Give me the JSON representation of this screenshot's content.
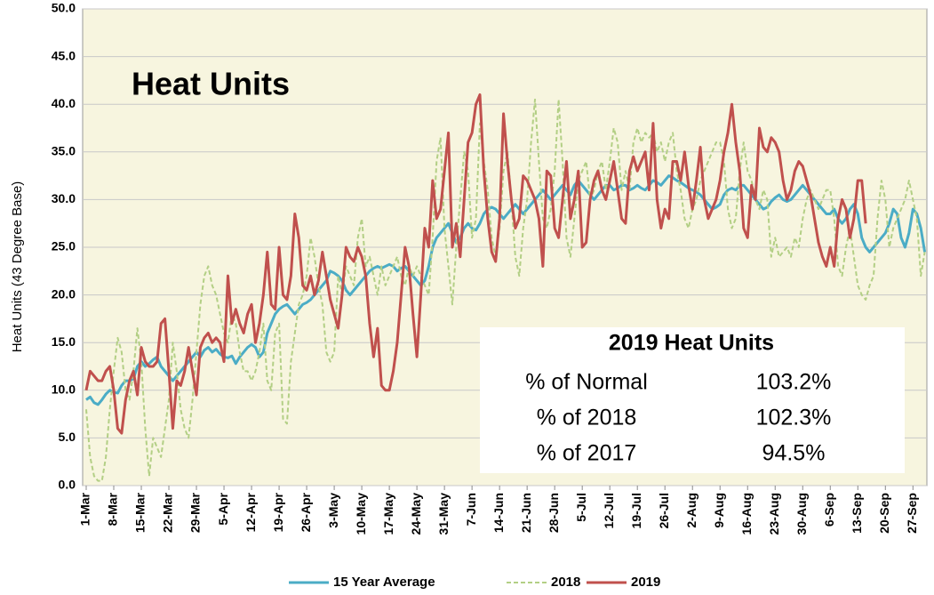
{
  "chart_data": {
    "type": "line",
    "title": "Heat Units",
    "ylabel": "Heat Units (43 Degree Base)",
    "ylim": [
      0,
      50
    ],
    "yticks": [
      {
        "value": 0,
        "label": "0.0"
      },
      {
        "value": 5,
        "label": "5.0"
      },
      {
        "value": 10,
        "label": "10.0"
      },
      {
        "value": 15,
        "label": "15.0"
      },
      {
        "value": 20,
        "label": "20.0"
      },
      {
        "value": 25,
        "label": "25.0"
      },
      {
        "value": 30,
        "label": "30.0"
      },
      {
        "value": 35,
        "label": "35.0"
      },
      {
        "value": 40,
        "label": "40.0"
      },
      {
        "value": 45,
        "label": "45.0"
      },
      {
        "value": 50,
        "label": "50.0"
      }
    ],
    "grid": true,
    "legend": "bottom",
    "categories": [
      "1-Mar",
      null,
      null,
      null,
      null,
      null,
      null,
      "8-Mar",
      null,
      null,
      null,
      null,
      null,
      null,
      "15-Mar",
      null,
      null,
      null,
      null,
      null,
      null,
      "22-Mar",
      null,
      null,
      null,
      null,
      null,
      null,
      "29-Mar",
      null,
      null,
      null,
      null,
      null,
      null,
      "5-Apr",
      null,
      null,
      null,
      null,
      null,
      null,
      "12-Apr",
      null,
      null,
      null,
      null,
      null,
      null,
      "19-Apr",
      null,
      null,
      null,
      null,
      null,
      null,
      "26-Apr",
      null,
      null,
      null,
      null,
      null,
      null,
      "3-May",
      null,
      null,
      null,
      null,
      null,
      null,
      "10-May",
      null,
      null,
      null,
      null,
      null,
      null,
      "17-May",
      null,
      null,
      null,
      null,
      null,
      null,
      "24-May",
      null,
      null,
      null,
      null,
      null,
      null,
      "31-May",
      null,
      null,
      null,
      null,
      null,
      null,
      "7-Jun",
      null,
      null,
      null,
      null,
      null,
      null,
      "14-Jun",
      null,
      null,
      null,
      null,
      null,
      null,
      "21-Jun",
      null,
      null,
      null,
      null,
      null,
      null,
      "28-Jun",
      null,
      null,
      null,
      null,
      null,
      null,
      "5-Jul",
      null,
      null,
      null,
      null,
      null,
      null,
      "12-Jul",
      null,
      null,
      null,
      null,
      null,
      null,
      "19-Jul",
      null,
      null,
      null,
      null,
      null,
      null,
      "26-Jul",
      null,
      null,
      null,
      null,
      null,
      null,
      "2-Aug",
      null,
      null,
      null,
      null,
      null,
      null,
      "9-Aug",
      null,
      null,
      null,
      null,
      null,
      null,
      "16-Aug",
      null,
      null,
      null,
      null,
      null,
      null,
      "23-Aug",
      null,
      null,
      null,
      null,
      null,
      null,
      "30-Aug",
      null,
      null,
      null,
      null,
      null,
      null,
      "6-Sep",
      null,
      null,
      null,
      null,
      null,
      null,
      "13-Sep",
      null,
      null,
      null,
      null,
      null,
      null,
      "20-Sep",
      null,
      null,
      null,
      null,
      null,
      null,
      "27-Sep",
      null,
      null,
      null
    ],
    "series": [
      {
        "name": "15 Year Average",
        "color": "#4bacc6",
        "dashed": false,
        "values": [
          9,
          9.3,
          8.7,
          8.5,
          9,
          9.6,
          10,
          9.8,
          9.7,
          10.5,
          11,
          11,
          11.2,
          12.5,
          13,
          12.5,
          12.8,
          13.2,
          13.5,
          12.5,
          12,
          11.5,
          11,
          11.5,
          12,
          12.5,
          13,
          13.5,
          14,
          13.5,
          14.2,
          14.5,
          14,
          14.3,
          13.8,
          13.5,
          13.4,
          13.6,
          12.8,
          13.5,
          14,
          14.5,
          14.8,
          14.5,
          13.5,
          14,
          16,
          17,
          18,
          18.5,
          18.8,
          19,
          18.5,
          18,
          18.5,
          19,
          19.2,
          19.5,
          20,
          20.5,
          21,
          21.5,
          22.5,
          22.3,
          22,
          21.5,
          20.5,
          20,
          20.5,
          21,
          21.5,
          22,
          22.5,
          22.8,
          23,
          22.8,
          23,
          23.2,
          23,
          22.5,
          22.8,
          23,
          22.5,
          22,
          21.5,
          21,
          21.5,
          23,
          25,
          26,
          26.5,
          27,
          27.5,
          26.5,
          25.5,
          26,
          27,
          27.5,
          27,
          26.8,
          27.5,
          28.5,
          29,
          29.2,
          29,
          28.5,
          28,
          28.5,
          29,
          29.5,
          29,
          28.5,
          29,
          29.5,
          30,
          30.5,
          31,
          30.5,
          30,
          30.5,
          31,
          31.5,
          31,
          30.5,
          31.5,
          32,
          31.5,
          31,
          30.5,
          30,
          30.5,
          31,
          31.5,
          31.5,
          31,
          31.2,
          31.5,
          31.5,
          31,
          31.2,
          31.5,
          31.2,
          31,
          31.5,
          32,
          31.8,
          31.5,
          32,
          32.5,
          32.3,
          32,
          31.8,
          31.5,
          31.2,
          31,
          30.8,
          30.5,
          30,
          29.5,
          29,
          29.2,
          29.5,
          30.5,
          31,
          31.2,
          31,
          31.5,
          31.5,
          31,
          30.5,
          30,
          29.5,
          29,
          29.2,
          29.8,
          30.2,
          30.5,
          30,
          29.8,
          30,
          30.5,
          31,
          31.5,
          31,
          30.5,
          30,
          29.5,
          29,
          28.5,
          28.5,
          29,
          28,
          27.5,
          28,
          29,
          29.5,
          28.5,
          26,
          25,
          24.5,
          25,
          25.5,
          26,
          26.5,
          27.5,
          29,
          28.5,
          26,
          25,
          26.5,
          29,
          28.5,
          27,
          24.5
        ]
      },
      {
        "name": "2018",
        "color": "#b3cf85",
        "dashed": true,
        "values": [
          8,
          3,
          1,
          0.5,
          0.5,
          3,
          8,
          12,
          15.5,
          14,
          10,
          9,
          12,
          16.5,
          13,
          6,
          1,
          5,
          4,
          3,
          6,
          9,
          15,
          12,
          8,
          6,
          5,
          9,
          14,
          19,
          22,
          23,
          21,
          20,
          18,
          16,
          15,
          18,
          17,
          14,
          12,
          12,
          11,
          12,
          14,
          17,
          11,
          10,
          16,
          17,
          7,
          6.5,
          13,
          16,
          19,
          20,
          22,
          26,
          24,
          21,
          19,
          14,
          13,
          14,
          22,
          20,
          23,
          22,
          21,
          26,
          28,
          23,
          24,
          22,
          20,
          23,
          21,
          22,
          23,
          24,
          22,
          21,
          23,
          22,
          23,
          22,
          21,
          20,
          26,
          34,
          36.5,
          27,
          23,
          19,
          25,
          30,
          35,
          33,
          26,
          28,
          38,
          34,
          31,
          26,
          24,
          27,
          33,
          35,
          30,
          24,
          22,
          27,
          30,
          36,
          40.5,
          34,
          28,
          27,
          29,
          33,
          40.5,
          34,
          26,
          24,
          28,
          32,
          33,
          34,
          30,
          31,
          33,
          34,
          31,
          34,
          37.5,
          36,
          31,
          33,
          31,
          36,
          37.5,
          36,
          37,
          36.5,
          37,
          35,
          36,
          34,
          36,
          37,
          33,
          31,
          28,
          27,
          29,
          30,
          32,
          33,
          34,
          35,
          36,
          36,
          34,
          29,
          27,
          28,
          33,
          36,
          33,
          32,
          30,
          29,
          31,
          30,
          24,
          26,
          24,
          24.5,
          25,
          24,
          26,
          25,
          28,
          30,
          31,
          30,
          29,
          30,
          31,
          31,
          28,
          23,
          22,
          25,
          27,
          24,
          21,
          20,
          19.5,
          21,
          22,
          28,
          32,
          30,
          25,
          27,
          28,
          29,
          30,
          32,
          30,
          28,
          22,
          24.5
        ]
      },
      {
        "name": "2019",
        "color": "#c0504d",
        "dashed": false,
        "values": [
          10,
          12,
          11.5,
          11,
          11,
          12,
          12.5,
          10,
          6,
          5.5,
          9,
          11,
          12,
          9.5,
          14.5,
          13,
          12.5,
          12.5,
          13,
          17,
          17.5,
          12,
          6,
          11,
          10.5,
          12,
          14.5,
          12,
          9.5,
          14.5,
          15.5,
          16,
          15,
          15.5,
          15,
          13,
          22,
          17,
          18.5,
          17,
          16,
          18,
          19,
          15,
          17,
          20,
          24.5,
          19,
          18.5,
          25,
          20,
          19.5,
          22,
          28.5,
          26,
          21,
          20.5,
          22,
          20,
          21.5,
          24.5,
          22,
          19.5,
          18,
          16.5,
          20,
          25,
          24,
          23.5,
          25,
          24,
          22,
          17,
          13.5,
          16.5,
          10.5,
          10,
          10,
          12,
          15,
          20,
          25,
          23,
          18,
          13.5,
          20,
          27,
          25,
          32,
          28,
          29,
          33,
          37,
          25,
          27.5,
          24,
          30,
          36,
          37,
          40,
          41,
          33,
          28,
          24.5,
          23.5,
          28,
          39,
          34,
          30,
          27,
          28,
          32.5,
          32,
          31,
          30,
          28,
          23,
          33,
          32.5,
          27,
          26,
          30,
          34,
          28,
          30,
          33,
          25,
          25.5,
          30,
          32,
          33,
          31,
          30,
          32,
          34,
          31,
          28,
          27.5,
          33,
          34.5,
          33,
          34,
          35,
          31,
          38,
          30,
          27,
          29,
          28,
          34,
          34,
          32,
          35,
          31.5,
          29,
          32,
          35.5,
          30,
          28,
          29,
          30,
          32,
          35,
          37,
          40,
          36,
          33,
          27,
          26,
          31.5,
          30,
          37.5,
          35.5,
          35,
          36.5,
          36,
          35,
          32,
          30,
          31,
          33,
          34,
          33.5,
          32,
          30.5,
          28,
          25.5,
          24,
          23,
          25,
          23,
          28,
          30,
          29,
          26,
          28,
          32,
          32,
          27.5,
          null,
          null,
          null,
          null,
          null,
          null,
          null,
          null,
          null,
          null,
          null,
          null,
          null,
          null,
          null
        ]
      }
    ],
    "annotation_table": {
      "title": "2019 Heat Units",
      "rows": [
        [
          "% of Normal",
          "103.2%"
        ],
        [
          "% of 2018",
          "102.3%"
        ],
        [
          "% of 2017",
          "94.5%"
        ]
      ]
    }
  }
}
